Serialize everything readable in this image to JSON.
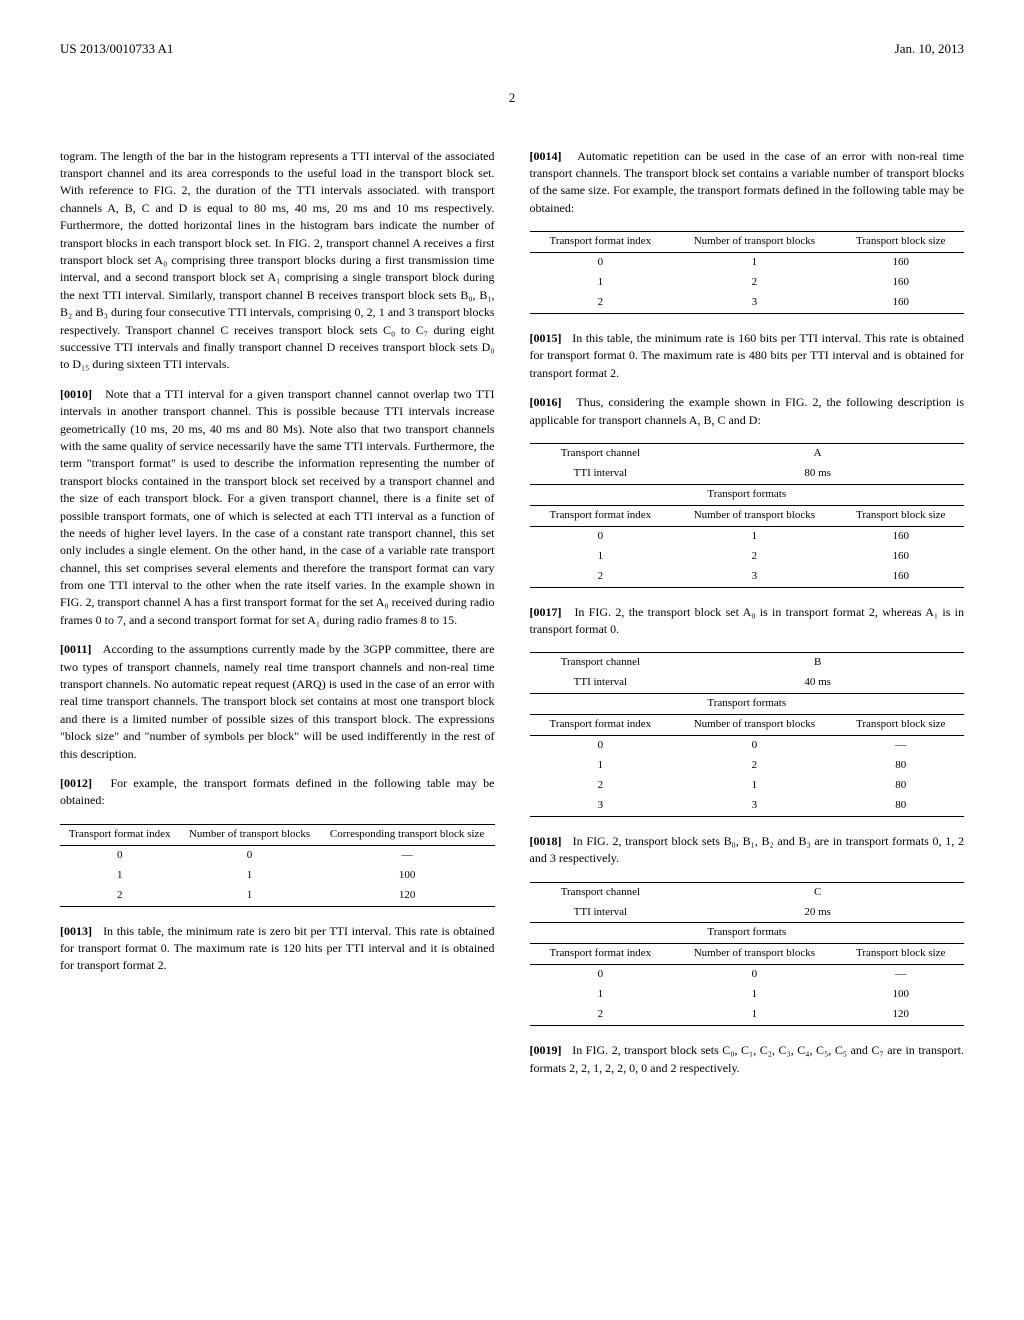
{
  "header": {
    "docnum": "US 2013/0010733 A1",
    "date": "Jan. 10, 2013",
    "pagenum": "2"
  },
  "left": {
    "p0009b": "togram. The length of the bar in the histogram represents a TTI interval of the associated transport channel and its area corresponds to the useful load in the transport block set. With reference to FIG. 2, the duration of the TTI intervals associated. with transport channels A, B, C and D is equal to 80 ms, 40 ms, 20 ms and 10 ms respectively. Furthermore, the dotted horizontal lines in the histogram bars indicate the number of transport blocks in each transport block set. In FIG. 2, transport channel A receives a first transport block set A₀ comprising three transport blocks during a first transmission time interval, and a second transport block set A₁ comprising a single transport block during the next TTI interval. Similarly, transport channel B receives transport block sets B₀, B₁, B₂ and B₃ during four consecutive TTI intervals, comprising 0, 2, 1 and 3 transport blocks respectively. Transport channel C receives transport block sets C₀ to C₇ during eight successive TTI intervals and finally transport channel D receives transport block sets D₀ to D₁₅ during sixteen TTI intervals.",
    "p0010_num": "[0010]",
    "p0010": "Note that a TTI interval for a given transport channel cannot overlap two TTI intervals in another transport channel. This is possible because TTI intervals increase geometrically (10 ms, 20 ms, 40 ms and 80 Ms). Note also that two transport channels with the same quality of service necessarily have the same TTI intervals. Furthermore, the term \"transport format\" is used to describe the information representing the number of transport blocks contained in the transport block set received by a transport channel and the size of each transport block. For a given transport channel, there is a finite set of possible transport formats, one of which is selected at each TTI interval as a function of the needs of higher level layers. In the case of a constant rate transport channel, this set only includes a single element. On the other hand, in the case of a variable rate transport channel, this set comprises several elements and therefore the transport format can vary from one TTI interval to the other when the rate itself varies. In the example shown in FIG. 2, transport channel A has a first transport format for the set A₀ received during radio frames 0 to 7, and a second transport format for set A₁ during radio frames 8 to 15.",
    "p0011_num": "[0011]",
    "p0011": "According to the assumptions currently made by the 3GPP committee, there are two types of transport channels, namely real time transport channels and non-real time transport channels. No automatic repeat request (ARQ) is used in the case of an error with real time transport channels. The transport block set contains at most one transport block and there is a limited number of possible sizes of this transport block. The expressions \"block size\" and \"number of symbols per block\" will be used indifferently in the rest of this description.",
    "p0012_num": "[0012]",
    "p0012": "For example, the transport formats defined in the following table may be obtained:",
    "table1": {
      "headers": [
        "Transport\nformat index",
        "Number of\ntransport blocks",
        "Corresponding transport\nblock size"
      ],
      "rows": [
        [
          "0",
          "0",
          "—"
        ],
        [
          "1",
          "1",
          "100"
        ],
        [
          "2",
          "1",
          "120"
        ]
      ]
    },
    "p0013_num": "[0013]",
    "p0013": "In this table, the minimum rate is zero bit per TTI interval. This rate is obtained for transport format 0. The maximum rate is 120 hits per TTI interval and it is obtained for transport format 2."
  },
  "right": {
    "p0014_num": "[0014]",
    "p0014": "Automatic repetition can be used in the case of an error with non-real time transport channels. The transport block set contains a variable number of transport blocks of the same size. For example, the transport formats defined in the following table may be obtained:",
    "table2": {
      "headers": [
        "Transport format index",
        "Number of transport blocks",
        "Transport block size"
      ],
      "rows": [
        [
          "0",
          "1",
          "160"
        ],
        [
          "1",
          "2",
          "160"
        ],
        [
          "2",
          "3",
          "160"
        ]
      ]
    },
    "p0015_num": "[0015]",
    "p0015": "In this table, the minimum rate is 160 bits per TTI interval. This rate is obtained for transport format 0. The maximum rate is 480 bits per TTI interval and is obtained for transport format 2.",
    "p0016_num": "[0016]",
    "p0016": "Thus, considering the example shown in FIG. 2, the following description is applicable for transport channels A, B, C and D:",
    "tableA": {
      "channel_label": "Transport channel",
      "channel_val": "A",
      "tti_label": "TTI interval",
      "tti_val": "80 ms",
      "formats_title": "Transport formats",
      "headers": [
        "Transport format index",
        "Number of transport blocks",
        "Transport block size"
      ],
      "rows": [
        [
          "0",
          "1",
          "160"
        ],
        [
          "1",
          "2",
          "160"
        ],
        [
          "2",
          "3",
          "160"
        ]
      ]
    },
    "p0017_num": "[0017]",
    "p0017": "In FIG. 2, the transport block set A₀ is in transport format 2, whereas A₁ is in transport format 0.",
    "tableB": {
      "channel_label": "Transport channel",
      "channel_val": "B",
      "tti_label": "TTI interval",
      "tti_val": "40 ms",
      "formats_title": "Transport formats",
      "headers": [
        "Transport format index",
        "Number of transport blocks",
        "Transport block size"
      ],
      "rows": [
        [
          "0",
          "0",
          "—"
        ],
        [
          "1",
          "2",
          "80"
        ],
        [
          "2",
          "1",
          "80"
        ],
        [
          "3",
          "3",
          "80"
        ]
      ]
    },
    "p0018_num": "[0018]",
    "p0018": "In FIG. 2, transport block sets B₀, B₁, B₂ and B₃ are in transport formats 0, 1, 2 and 3 respectively.",
    "tableC": {
      "channel_label": "Transport channel",
      "channel_val": "C",
      "tti_label": "TTI interval",
      "tti_val": "20 ms",
      "formats_title": "Transport formats",
      "headers": [
        "Transport format index",
        "Number of transport blocks",
        "Transport block size"
      ],
      "rows": [
        [
          "0",
          "0",
          "—"
        ],
        [
          "1",
          "1",
          "100"
        ],
        [
          "2",
          "1",
          "120"
        ]
      ]
    },
    "p0019_num": "[0019]",
    "p0019": "In FIG. 2, transport block sets C₀, C₁, C₂, C₃, C₄, C₅, C₅ and C₇ are in transport. formats 2, 2, 1, 2, 2, 0, 0 and 2 respectively."
  }
}
